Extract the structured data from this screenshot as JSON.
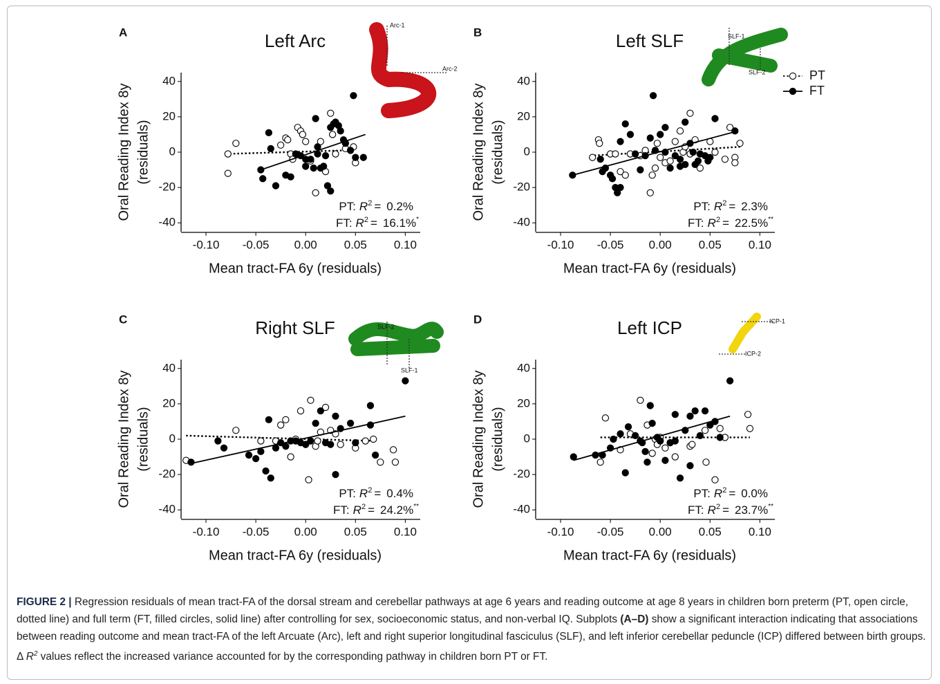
{
  "chart_data": [
    {
      "type": "scatter",
      "panel": "A",
      "title": "Left Arc",
      "xlabel": "Mean tract-FA 6y (residuals)",
      "ylabel": [
        "Oral Reading Index 8y",
        "(residuals)"
      ],
      "xlim": [
        -0.125,
        0.115
      ],
      "ylim": [
        -45,
        45
      ],
      "xticks": [
        {
          "value": -0.1,
          "label": "-0.10"
        },
        -0.05,
        {
          "value": 0,
          "label": "0.00"
        },
        0.05,
        {
          "value": 0.1,
          "label": "0.10"
        }
      ],
      "yticks": [
        40,
        20,
        0,
        -20,
        -40
      ],
      "tract": {
        "color": "#c8141a",
        "labels": [
          "Arc-1",
          "Arc-2"
        ]
      },
      "series": [
        {
          "name": "PT",
          "marker": "open",
          "line": "dotted",
          "color": "#000",
          "x": [
            -0.078,
            -0.078,
            -0.07,
            -0.025,
            -0.02,
            -0.018,
            -0.015,
            -0.013,
            -0.008,
            -0.005,
            -0.003,
            0,
            0.005,
            0.01,
            0.015,
            0.02,
            0.025,
            0.027,
            0.03,
            0.04,
            0.048,
            0.05
          ],
          "values": [
            -1,
            -12,
            5,
            4,
            8,
            7,
            -1,
            -4,
            14,
            12,
            10,
            6,
            -5,
            -23,
            6,
            -11,
            22,
            10,
            -1,
            2,
            3,
            -6
          ],
          "fit": {
            "x": [
              -0.08,
              0.04
            ],
            "y": [
              -1,
              1
            ]
          }
        },
        {
          "name": "FT",
          "marker": "filled",
          "line": "solid",
          "color": "#000",
          "x": [
            -0.037,
            -0.035,
            -0.045,
            -0.043,
            -0.03,
            -0.02,
            -0.015,
            -0.01,
            -0.005,
            0,
            0.005,
            0.008,
            0.01,
            0.012,
            0.015,
            0.018,
            0.02,
            0.022,
            0.025,
            0.025,
            0.028,
            0.03,
            0.033,
            0.035,
            0.038,
            0.04,
            0.045,
            0.05,
            0.048,
            0.058,
            0.012,
            0
          ],
          "values": [
            11,
            2,
            -10,
            -15,
            -19,
            -13,
            -14,
            -1,
            -2,
            -4,
            -4,
            -9,
            19,
            -1,
            -9,
            -8,
            -2,
            -19,
            -22,
            14,
            16,
            17,
            15,
            12,
            7,
            5,
            1,
            -3,
            32,
            -3,
            3,
            -8
          ],
          "fit": {
            "x": [
              -0.045,
              0.06
            ],
            "y": [
              -10,
              10
            ]
          }
        }
      ],
      "annotations": [
        {
          "group": "PT:",
          "stat": "R",
          "power": "2",
          "equals": "=",
          "value": "0.2%"
        },
        {
          "group": "FT:",
          "stat": "R",
          "power": "2",
          "equals": "=",
          "value": "16.1%",
          "sig": "*"
        }
      ]
    },
    {
      "type": "scatter",
      "panel": "B",
      "title": "Left SLF",
      "xlabel": "Mean tract-FA 6y (residuals)",
      "ylabel": [
        "Oral Reading Index 8y",
        "(residuals)"
      ],
      "xlim": [
        -0.125,
        0.115
      ],
      "ylim": [
        -45,
        45
      ],
      "xticks": [
        {
          "value": -0.1,
          "label": "-0.10"
        },
        -0.05,
        {
          "value": 0,
          "label": "0.00"
        },
        0.05,
        {
          "value": 0.1,
          "label": "0.10"
        }
      ],
      "yticks": [
        40,
        20,
        0,
        -20,
        -40
      ],
      "legend": "top-right",
      "tract": {
        "color": "#1f8a1f",
        "labels": [
          "SLF-1",
          "SLF-2"
        ]
      },
      "series": [
        {
          "name": "PT",
          "marker": "open",
          "line": "dotted",
          "color": "#000",
          "x": [
            -0.068,
            -0.062,
            -0.061,
            -0.05,
            -0.045,
            -0.04,
            -0.035,
            -0.03,
            -0.02,
            -0.015,
            -0.01,
            -0.008,
            -0.005,
            -0.003,
            0,
            0.005,
            0.01,
            0.015,
            0.02,
            0.023,
            0.025,
            0.03,
            0.035,
            0.04,
            0.05,
            0.055,
            0.065,
            0.07,
            0.075,
            0.075,
            0.08,
            0.03
          ],
          "values": [
            -3,
            7,
            5,
            -1,
            -1,
            -11,
            -13,
            -1,
            -2,
            1,
            -23,
            -13,
            -9,
            5,
            -3,
            -6,
            -5,
            6,
            12,
            0,
            3,
            -1,
            7,
            -9,
            6,
            0,
            -4,
            14,
            -3,
            -6,
            5,
            22
          ],
          "fit": {
            "x": [
              -0.07,
              0.08
            ],
            "y": [
              -2,
              3
            ]
          }
        },
        {
          "name": "FT",
          "marker": "filled",
          "line": "solid",
          "color": "#000",
          "x": [
            -0.088,
            -0.06,
            -0.058,
            -0.055,
            -0.05,
            -0.048,
            -0.045,
            -0.043,
            -0.04,
            -0.04,
            -0.035,
            -0.03,
            -0.025,
            -0.02,
            -0.015,
            -0.01,
            -0.005,
            0,
            0.005,
            0.005,
            0.01,
            0.015,
            0.02,
            0.02,
            0.025,
            0.025,
            0.03,
            0.035,
            0.038,
            0.04,
            0.045,
            0.048,
            0.05,
            0.055,
            0.075,
            -0.007,
            0.033
          ],
          "values": [
            -13,
            -4,
            -11,
            -9,
            -13,
            -15,
            -20,
            -23,
            -20,
            6,
            16,
            10,
            -1,
            -10,
            -2,
            8,
            1,
            10,
            14,
            0,
            -9,
            -2,
            -4,
            -8,
            -7,
            17,
            5,
            -7,
            -5,
            -1,
            -2,
            -5,
            -3,
            19,
            12,
            32,
            0
          ],
          "fit": {
            "x": [
              -0.088,
              0.078
            ],
            "y": [
              -13,
              12
            ]
          }
        }
      ],
      "annotations": [
        {
          "group": "PT:",
          "stat": "R",
          "power": "2",
          "equals": "=",
          "value": "2.3%"
        },
        {
          "group": "FT:",
          "stat": "R",
          "power": "2",
          "equals": "=",
          "value": "22.5%",
          "sig": "**"
        }
      ]
    },
    {
      "type": "scatter",
      "panel": "C",
      "title": "Right SLF",
      "xlabel": "Mean tract-FA 6y (residuals)",
      "ylabel": [
        "Oral Reading Index 8y",
        "(residuals)"
      ],
      "xlim": [
        -0.125,
        0.115
      ],
      "ylim": [
        -45,
        45
      ],
      "xticks": [
        {
          "value": -0.1,
          "label": "-0.10"
        },
        -0.05,
        {
          "value": 0,
          "label": "0.00"
        },
        0.05,
        {
          "value": 0.1,
          "label": "0.10"
        }
      ],
      "yticks": [
        40,
        20,
        0,
        -20,
        -40
      ],
      "tract": {
        "color": "#1f8a1f",
        "labels": [
          "SLF-2",
          "SLF-1"
        ]
      },
      "series": [
        {
          "name": "PT",
          "marker": "open",
          "line": "dotted",
          "color": "#000",
          "x": [
            -0.12,
            -0.07,
            -0.045,
            -0.03,
            -0.025,
            -0.02,
            -0.015,
            -0.01,
            -0.005,
            0,
            0.003,
            0.005,
            0.01,
            0.012,
            0.015,
            0.02,
            0.025,
            0.03,
            0.035,
            0.05,
            0.06,
            0.068,
            0.075,
            0.088,
            0.09
          ],
          "values": [
            -12,
            5,
            -1,
            -1,
            8,
            11,
            -10,
            0,
            16,
            -3,
            -23,
            22,
            -4,
            -1,
            4,
            18,
            5,
            3,
            -3,
            -5,
            -1,
            0,
            -13,
            -6,
            -13
          ],
          "fit": {
            "x": [
              -0.12,
              0.07
            ],
            "y": [
              2,
              -1
            ]
          }
        },
        {
          "name": "FT",
          "marker": "filled",
          "line": "solid",
          "color": "#000",
          "x": [
            -0.115,
            -0.088,
            -0.082,
            -0.057,
            -0.05,
            -0.045,
            -0.04,
            -0.037,
            -0.035,
            -0.03,
            -0.025,
            -0.02,
            -0.015,
            -0.01,
            0,
            0.005,
            0.01,
            0.015,
            0.02,
            0.025,
            0.03,
            0.03,
            0.035,
            0.045,
            0.05,
            0.065,
            0.065,
            0.07,
            0.1,
            -0.005
          ],
          "values": [
            -13,
            -1,
            -5,
            -9,
            -11,
            -7,
            -18,
            11,
            -22,
            -5,
            -2,
            -4,
            -1,
            -1,
            -3,
            -1,
            9,
            16,
            -2,
            -3,
            -20,
            13,
            6,
            9,
            -2,
            19,
            8,
            -9,
            33,
            -2
          ],
          "fit": {
            "x": [
              -0.117,
              0.1
            ],
            "y": [
              -14,
              13
            ]
          }
        }
      ],
      "annotations": [
        {
          "group": "PT:",
          "stat": "R",
          "power": "2",
          "equals": "=",
          "value": "0.4%"
        },
        {
          "group": "FT:",
          "stat": "R",
          "power": "2",
          "equals": "=",
          "value": "24.2%",
          "sig": "**"
        }
      ]
    },
    {
      "type": "scatter",
      "panel": "D",
      "title": "Left ICP",
      "xlabel": "Mean tract-FA 6y (residuals)",
      "ylabel": [
        "Oral Reading Index 8y",
        "(residuals)"
      ],
      "xlim": [
        -0.125,
        0.115
      ],
      "ylim": [
        -45,
        45
      ],
      "xticks": [
        {
          "value": -0.1,
          "label": "-0.10"
        },
        -0.05,
        {
          "value": 0,
          "label": "0.00"
        },
        0.05,
        {
          "value": 0.1,
          "label": "0.10"
        }
      ],
      "yticks": [
        40,
        20,
        0,
        -20,
        -40
      ],
      "tract": {
        "color": "#f2d40f",
        "labels": [
          "ICP-1",
          "ICP-2"
        ]
      },
      "series": [
        {
          "name": "PT",
          "marker": "open",
          "line": "dotted",
          "color": "#000",
          "x": [
            -0.06,
            -0.055,
            -0.04,
            -0.03,
            -0.02,
            -0.013,
            -0.008,
            -0.005,
            -0.003,
            0,
            0.005,
            0.01,
            0.015,
            0.03,
            0.032,
            0.045,
            0.046,
            0.055,
            0.06,
            0.065,
            0.088,
            0.09,
            0
          ],
          "values": [
            -13,
            12,
            -6,
            3,
            22,
            8,
            -8,
            0,
            -3,
            1,
            -5,
            -2,
            -10,
            -4,
            -3,
            5,
            -13,
            -23,
            6,
            1,
            14,
            6,
            -1
          ],
          "fit": {
            "x": [
              -0.06,
              0.09
            ],
            "y": [
              1,
              1
            ]
          }
        },
        {
          "name": "FT",
          "marker": "filled",
          "line": "solid",
          "color": "#000",
          "x": [
            -0.087,
            -0.065,
            -0.058,
            -0.05,
            -0.047,
            -0.04,
            -0.035,
            -0.032,
            -0.025,
            -0.02,
            -0.018,
            -0.015,
            -0.013,
            -0.01,
            -0.008,
            -0.003,
            0,
            0.005,
            0.01,
            0.015,
            0.015,
            0.02,
            0.025,
            0.03,
            0.03,
            0.035,
            0.045,
            0.05,
            0.055,
            0.06,
            0.07,
            0.04
          ],
          "values": [
            -10,
            -9,
            -9,
            -5,
            0,
            3,
            -19,
            7,
            2,
            -1,
            -2,
            -7,
            -13,
            19,
            9,
            1,
            -1,
            -12,
            -2,
            -1,
            14,
            -22,
            5,
            -15,
            13,
            16,
            16,
            8,
            10,
            1,
            33,
            2
          ],
          "fit": {
            "x": [
              -0.087,
              0.07
            ],
            "y": [
              -12,
              13
            ]
          }
        }
      ],
      "annotations": [
        {
          "group": "PT:",
          "stat": "R",
          "power": "2",
          "equals": "=",
          "value": "0.0%"
        },
        {
          "group": "FT:",
          "stat": "R",
          "power": "2",
          "equals": "=",
          "value": "23.7%",
          "sig": "**"
        }
      ]
    }
  ],
  "caption": [
    {
      "text": "FIGURE 2 |",
      "style": "fig"
    },
    {
      "text": " Regression residuals of mean tract-FA of the dorsal stream and cerebellar pathways at age 6 years and reading outcome at age 8 years in children born preterm (PT, open circle, dotted line) and full term (FT, filled circles, solid line) after controlling for sex, socioeconomic status, and non-verbal IQ. Subplots ",
      "style": "plain"
    },
    {
      "text": "(A–D)",
      "style": "bold"
    },
    {
      "text": " show a significant interaction indicating that associations between reading outcome and mean tract-FA of the left Arcuate (Arc), left and right superior longitudinal fasciculus (SLF), and left inferior cerebellar peduncle (ICP) differed between birth groups. Δ ",
      "style": "plain"
    },
    {
      "text": "R",
      "style": "italic"
    },
    {
      "text": "2",
      "style": "sup"
    },
    {
      "text": " values reflect the increased variance accounted for by the corresponding pathway in children born PT or FT.",
      "style": "plain"
    }
  ]
}
